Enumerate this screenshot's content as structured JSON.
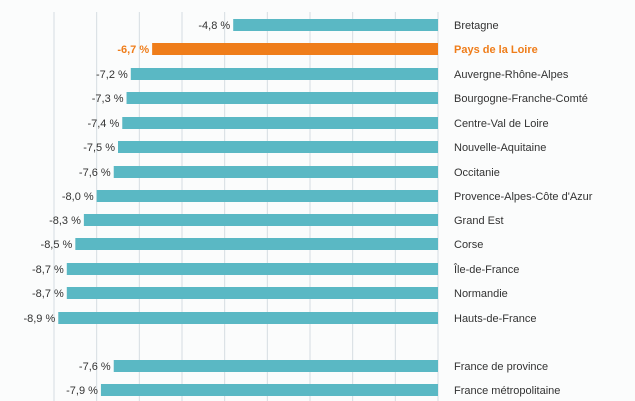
{
  "chart_data": {
    "type": "bar",
    "orientation": "horizontal",
    "title": "",
    "xlabel": "",
    "ylabel": "",
    "xlim": [
      -9,
      0
    ],
    "grid": true,
    "legend": "none",
    "colors": {
      "default": "#5ab8c4",
      "highlight": "#ef7d1a",
      "grid": "#d6dde2"
    },
    "highlight_index": 1,
    "categories": [
      "Bretagne",
      "Pays de la Loire",
      "Auvergne-Rhône-Alpes",
      "Bourgogne-Franche-Comté",
      "Centre-Val de Loire",
      "Nouvelle-Aquitaine",
      "Occitanie",
      "Provence-Alpes-Côte d'Azur",
      "Grand Est",
      "Corse",
      "Île-de-France",
      "Normandie",
      "Hauts-de-France",
      "France de province",
      "France métropolitaine"
    ],
    "values": [
      -4.8,
      -6.7,
      -7.2,
      -7.3,
      -7.4,
      -7.5,
      -7.6,
      -8.0,
      -8.3,
      -8.5,
      -8.7,
      -8.7,
      -8.9,
      -7.6,
      -7.9
    ],
    "value_labels": [
      "-4,8 %",
      "-6,7 %",
      "-7,2 %",
      "-7,3 %",
      "-7,4 %",
      "-7,5 %",
      "-7,6 %",
      "-8,0 %",
      "-8,3 %",
      "-8,5 %",
      "-8,7 %",
      "-8,7 %",
      "-8,9 %",
      "-7,6 %",
      "-7,9 %"
    ]
  }
}
